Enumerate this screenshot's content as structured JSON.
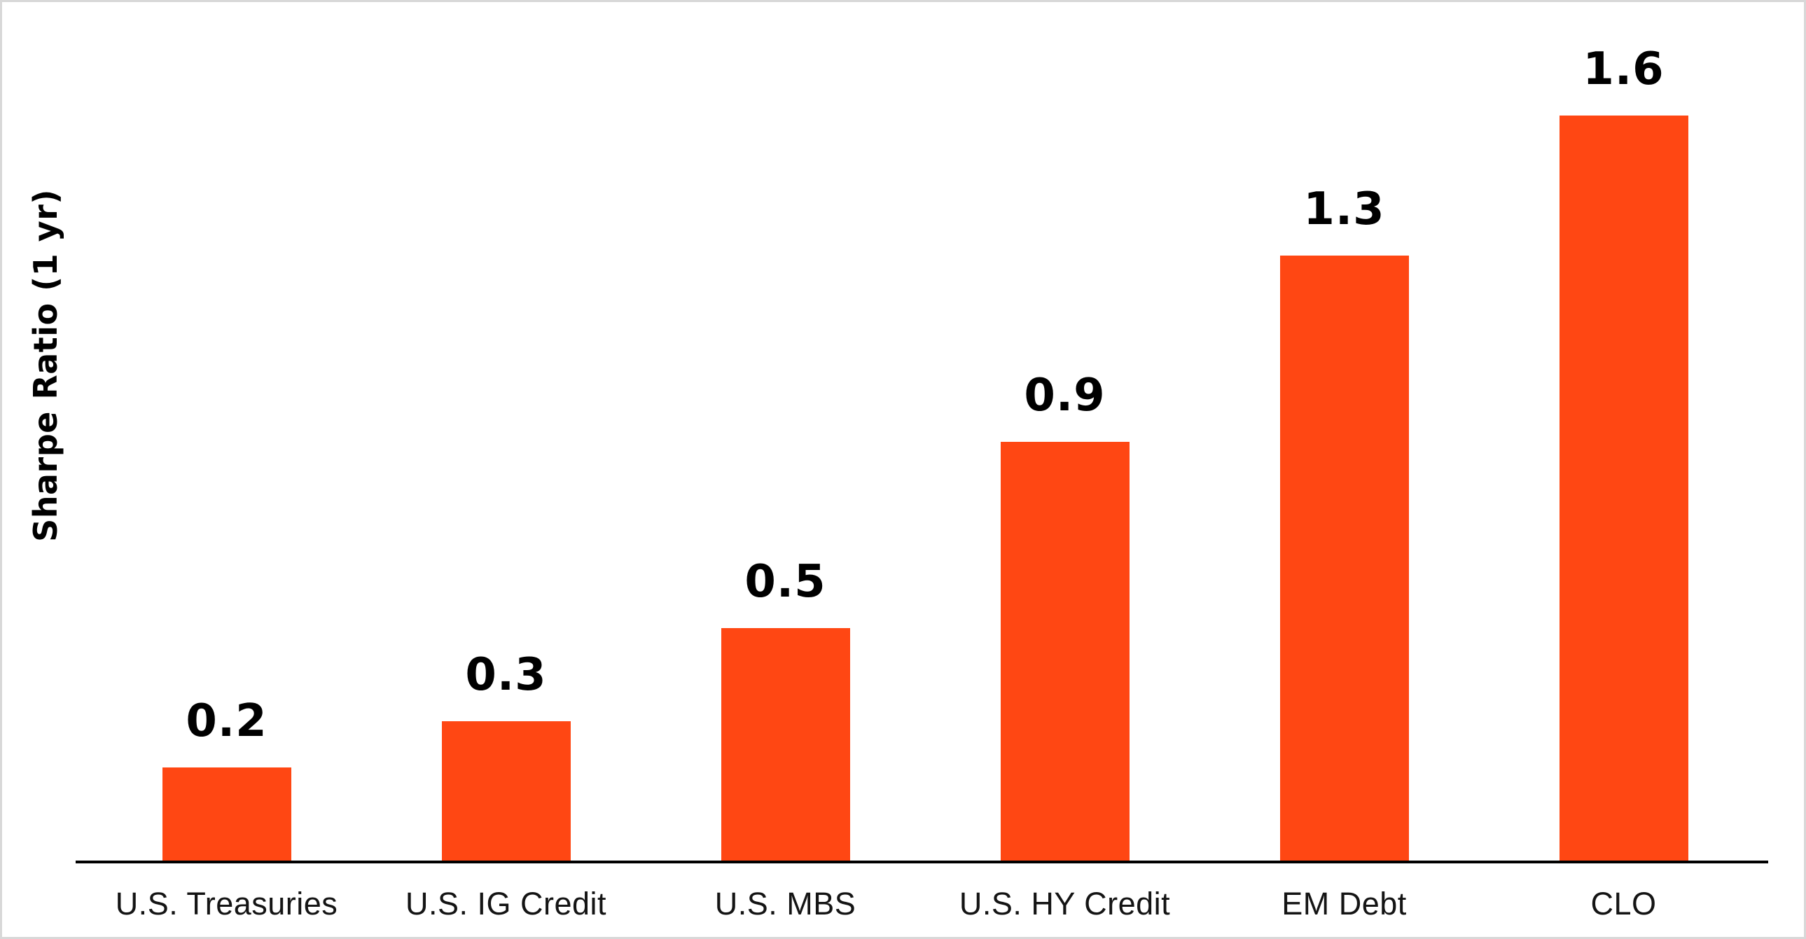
{
  "chart_data": {
    "type": "bar",
    "title": "",
    "xlabel": "",
    "ylabel": "Sharpe Ratio (1 yr)",
    "categories": [
      "U.S. Treasuries",
      "U.S. IG Credit",
      "U.S. MBS",
      "U.S. HY Credit",
      "EM Debt",
      "CLO"
    ],
    "values": [
      0.2,
      0.3,
      0.5,
      0.9,
      1.3,
      1.6
    ],
    "value_labels": [
      "0.2",
      "0.3",
      "0.5",
      "0.9",
      "1.3",
      "1.6"
    ],
    "ylim": [
      0,
      1.85
    ],
    "grid": false,
    "legend": false,
    "value_label_position": "above-bars",
    "colors": {
      "bar": "#FF4713",
      "axis_line": "#000000",
      "value_label": "#000000",
      "category_label": "#141414",
      "background": "#FFFFFF",
      "canvas_border": "#D8D8D8"
    }
  }
}
